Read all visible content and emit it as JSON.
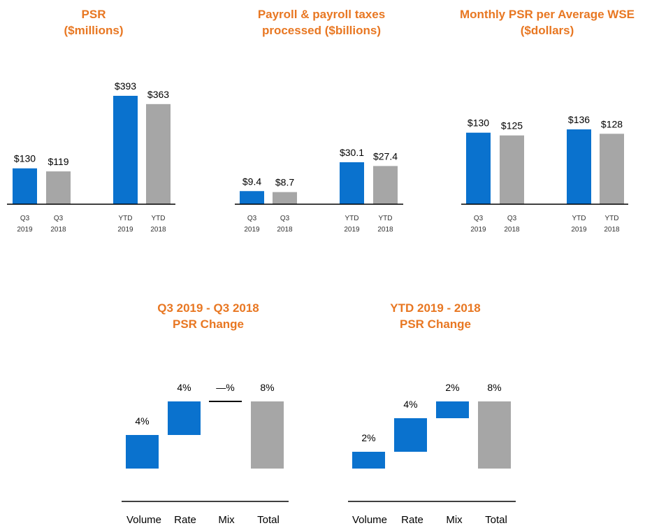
{
  "colors": {
    "accent": "#E87722",
    "blue": "#0A72CE",
    "gray": "#A6A6A6",
    "axis": "#000000"
  },
  "chart_data": [
    {
      "type": "bar",
      "title": [
        "PSR",
        "($millions)"
      ],
      "categories": [
        [
          "Q3",
          "2019"
        ],
        [
          "Q3",
          "2018"
        ],
        [
          "YTD",
          "2019"
        ],
        [
          "YTD",
          "2018"
        ]
      ],
      "values": [
        130,
        119,
        393,
        363
      ],
      "labels": [
        "$130",
        "$119",
        "$393",
        "$363"
      ],
      "ylim": [
        0,
        400
      ]
    },
    {
      "type": "bar",
      "title": [
        "Payroll & payroll taxes",
        "processed ($billions)"
      ],
      "categories": [
        [
          "Q3",
          "2019"
        ],
        [
          "Q3",
          "2018"
        ],
        [
          "YTD",
          "2019"
        ],
        [
          "YTD",
          "2018"
        ]
      ],
      "values": [
        9.4,
        8.7,
        30.1,
        27.4
      ],
      "labels": [
        "$9.4",
        "$8.7",
        "$30.1",
        "$27.4"
      ],
      "ylim": [
        0,
        100
      ]
    },
    {
      "type": "bar",
      "title": [
        "Monthly PSR per Average WSE",
        "($dollars)"
      ],
      "categories": [
        [
          "Q3",
          "2019"
        ],
        [
          "Q3",
          "2018"
        ],
        [
          "YTD",
          "2019"
        ],
        [
          "YTD",
          "2018"
        ]
      ],
      "values": [
        130,
        125,
        136,
        128
      ],
      "labels": [
        "$130",
        "$125",
        "$136",
        "$128"
      ],
      "ylim": [
        0,
        200
      ]
    },
    {
      "type": "waterfall",
      "title": [
        "Q3 2019 - Q3 2018",
        "PSR Change"
      ],
      "categories": [
        "Volume",
        "Rate",
        "Mix",
        "Total"
      ],
      "values": [
        4,
        4,
        0,
        8
      ],
      "labels": [
        "4%",
        "4%",
        "—%",
        "8%"
      ]
    },
    {
      "type": "waterfall",
      "title": [
        "YTD 2019 -  2018",
        "PSR Change"
      ],
      "categories": [
        "Volume",
        "Rate",
        "Mix",
        "Total"
      ],
      "values": [
        2,
        4,
        2,
        8
      ],
      "labels": [
        "2%",
        "4%",
        "2%",
        "8%"
      ]
    }
  ]
}
